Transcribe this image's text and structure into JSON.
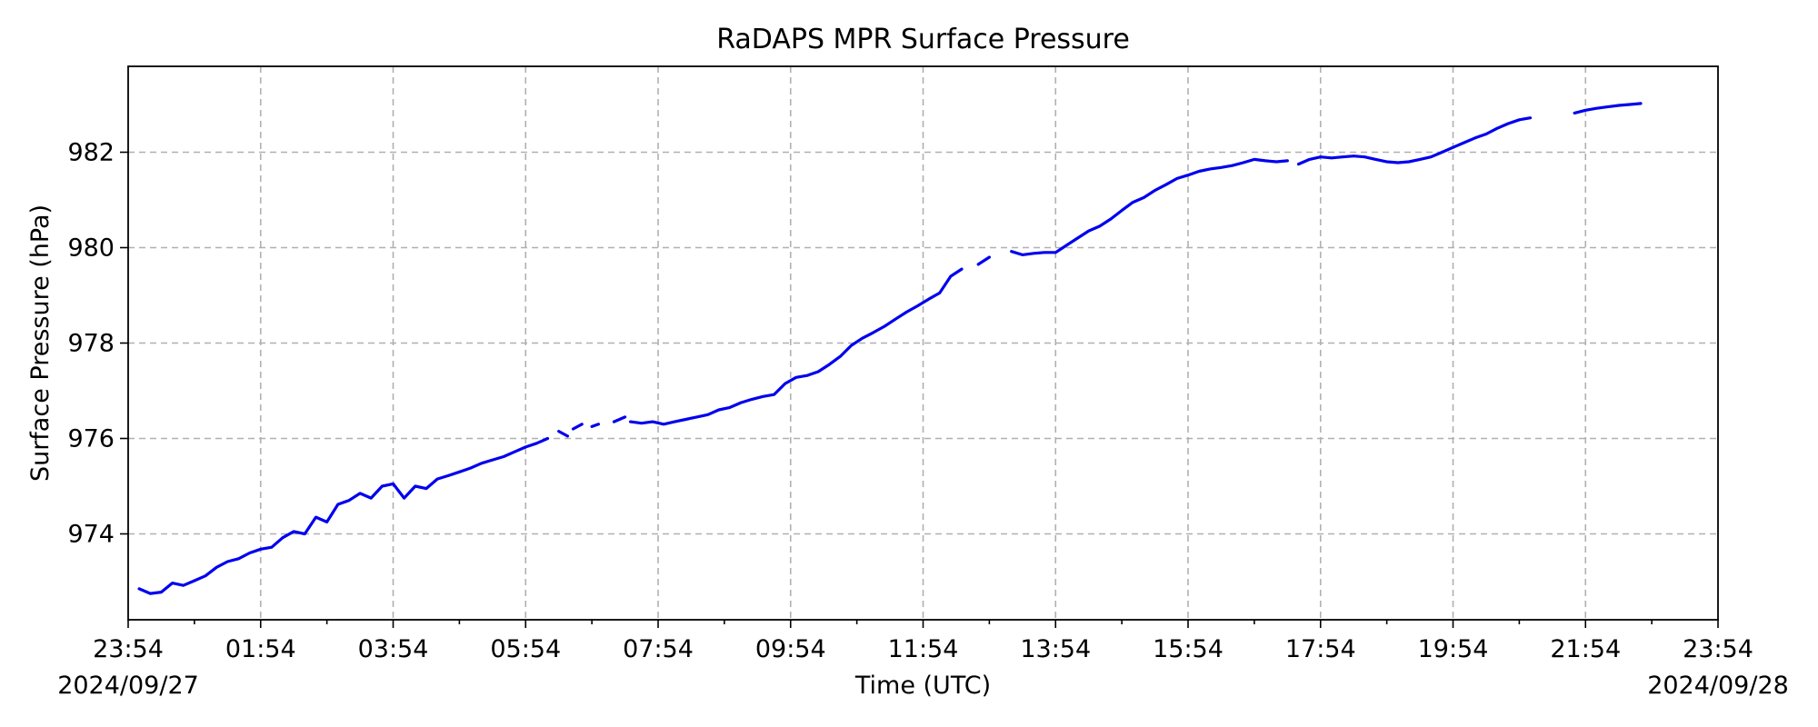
{
  "chart_data": {
    "type": "line",
    "title": "RaDAPS MPR Surface Pressure",
    "xlabel": "Time (UTC)",
    "ylabel": "Surface Pressure (hPa)",
    "date_start": "2024/09/27",
    "date_end": "2024/09/28",
    "x_ticks": [
      "23:54",
      "01:54",
      "03:54",
      "05:54",
      "07:54",
      "09:54",
      "11:54",
      "13:54",
      "15:54",
      "17:54",
      "19:54",
      "21:54",
      "23:54"
    ],
    "y_ticks": [
      "974",
      "976",
      "978",
      "980",
      "982"
    ],
    "xlim": [
      "2024-09-27 23:54",
      "2024-09-28 23:54"
    ],
    "ylim": [
      972.2,
      983.8
    ],
    "grid": true,
    "series": [
      {
        "color": "#0000ee",
        "segments": [
          [
            [
              "2024-09-28 00:04",
              972.85
            ],
            [
              "2024-09-28 00:14",
              972.75
            ],
            [
              "2024-09-28 00:24",
              972.78
            ],
            [
              "2024-09-28 00:34",
              972.97
            ],
            [
              "2024-09-28 00:44",
              972.92
            ],
            [
              "2024-09-28 00:54",
              973.02
            ],
            [
              "2024-09-28 01:04",
              973.12
            ],
            [
              "2024-09-28 01:14",
              973.3
            ],
            [
              "2024-09-28 01:24",
              973.42
            ],
            [
              "2024-09-28 01:34",
              973.48
            ],
            [
              "2024-09-28 01:44",
              973.6
            ],
            [
              "2024-09-28 01:54",
              973.68
            ],
            [
              "2024-09-28 02:04",
              973.72
            ],
            [
              "2024-09-28 02:14",
              973.92
            ],
            [
              "2024-09-28 02:24",
              974.05
            ],
            [
              "2024-09-28 02:34",
              974.0
            ],
            [
              "2024-09-28 02:44",
              974.35
            ],
            [
              "2024-09-28 02:54",
              974.25
            ],
            [
              "2024-09-28 03:04",
              974.62
            ],
            [
              "2024-09-28 03:14",
              974.7
            ],
            [
              "2024-09-28 03:24",
              974.85
            ],
            [
              "2024-09-28 03:34",
              974.75
            ],
            [
              "2024-09-28 03:44",
              975.0
            ],
            [
              "2024-09-28 03:54",
              975.05
            ],
            [
              "2024-09-28 04:04",
              974.75
            ],
            [
              "2024-09-28 04:14",
              975.0
            ],
            [
              "2024-09-28 04:24",
              974.95
            ],
            [
              "2024-09-28 04:34",
              975.15
            ],
            [
              "2024-09-28 04:44",
              975.22
            ],
            [
              "2024-09-28 04:54",
              975.3
            ],
            [
              "2024-09-28 05:04",
              975.38
            ],
            [
              "2024-09-28 05:14",
              975.48
            ],
            [
              "2024-09-28 05:24",
              975.55
            ],
            [
              "2024-09-28 05:34",
              975.62
            ],
            [
              "2024-09-28 05:44",
              975.72
            ],
            [
              "2024-09-28 05:54",
              975.82
            ],
            [
              "2024-09-28 06:04",
              975.9
            ],
            [
              "2024-09-28 06:14",
              976.0
            ]
          ],
          [
            [
              "2024-09-28 06:24",
              976.15
            ],
            [
              "2024-09-28 06:32",
              976.05
            ]
          ],
          [
            [
              "2024-09-28 06:37",
              976.2
            ],
            [
              "2024-09-28 06:45",
              976.3
            ]
          ],
          [
            [
              "2024-09-28 06:54",
              976.25
            ],
            [
              "2024-09-28 07:00",
              976.3
            ]
          ],
          [
            [
              "2024-09-28 07:14",
              976.35
            ],
            [
              "2024-09-28 07:24",
              976.45
            ]
          ],
          [
            [
              "2024-09-28 07:29",
              976.35
            ],
            [
              "2024-09-28 07:39",
              976.32
            ],
            [
              "2024-09-28 07:49",
              976.35
            ],
            [
              "2024-09-28 07:59",
              976.3
            ],
            [
              "2024-09-28 08:09",
              976.35
            ],
            [
              "2024-09-28 08:19",
              976.4
            ],
            [
              "2024-09-28 08:29",
              976.45
            ],
            [
              "2024-09-28 08:39",
              976.5
            ],
            [
              "2024-09-28 08:49",
              976.6
            ],
            [
              "2024-09-28 08:59",
              976.65
            ],
            [
              "2024-09-28 09:09",
              976.75
            ],
            [
              "2024-09-28 09:19",
              976.82
            ],
            [
              "2024-09-28 09:29",
              976.88
            ],
            [
              "2024-09-28 09:39",
              976.92
            ],
            [
              "2024-09-28 09:49",
              977.15
            ],
            [
              "2024-09-28 09:59",
              977.28
            ],
            [
              "2024-09-28 10:09",
              977.32
            ],
            [
              "2024-09-28 10:19",
              977.4
            ],
            [
              "2024-09-28 10:29",
              977.55
            ],
            [
              "2024-09-28 10:39",
              977.72
            ],
            [
              "2024-09-28 10:49",
              977.95
            ],
            [
              "2024-09-28 10:59",
              978.1
            ],
            [
              "2024-09-28 11:09",
              978.22
            ],
            [
              "2024-09-28 11:19",
              978.35
            ],
            [
              "2024-09-28 11:29",
              978.5
            ],
            [
              "2024-09-28 11:39",
              978.65
            ],
            [
              "2024-09-28 11:49",
              978.78
            ],
            [
              "2024-09-28 11:59",
              978.92
            ],
            [
              "2024-09-28 12:09",
              979.05
            ],
            [
              "2024-09-28 12:19",
              979.4
            ],
            [
              "2024-09-28 12:29",
              979.55
            ]
          ],
          [
            [
              "2024-09-28 12:44",
              979.65
            ],
            [
              "2024-09-28 12:54",
              979.8
            ]
          ],
          [
            [
              "2024-09-28 13:14",
              979.92
            ],
            [
              "2024-09-28 13:24",
              979.85
            ],
            [
              "2024-09-28 13:34",
              979.88
            ],
            [
              "2024-09-28 13:44",
              979.9
            ],
            [
              "2024-09-28 13:54",
              979.9
            ],
            [
              "2024-09-28 14:04",
              980.05
            ],
            [
              "2024-09-28 14:14",
              980.2
            ],
            [
              "2024-09-28 14:24",
              980.35
            ],
            [
              "2024-09-28 14:34",
              980.45
            ],
            [
              "2024-09-28 14:44",
              980.6
            ],
            [
              "2024-09-28 14:54",
              980.78
            ],
            [
              "2024-09-28 15:04",
              980.95
            ],
            [
              "2024-09-28 15:14",
              981.05
            ],
            [
              "2024-09-28 15:24",
              981.2
            ],
            [
              "2024-09-28 15:34",
              981.32
            ],
            [
              "2024-09-28 15:44",
              981.45
            ],
            [
              "2024-09-28 15:54",
              981.52
            ],
            [
              "2024-09-28 16:04",
              981.6
            ],
            [
              "2024-09-28 16:14",
              981.65
            ],
            [
              "2024-09-28 16:24",
              981.68
            ],
            [
              "2024-09-28 16:34",
              981.72
            ],
            [
              "2024-09-28 16:44",
              981.78
            ],
            [
              "2024-09-28 16:54",
              981.85
            ],
            [
              "2024-09-28 17:04",
              981.82
            ],
            [
              "2024-09-28 17:14",
              981.8
            ],
            [
              "2024-09-28 17:24",
              981.82
            ]
          ],
          [
            [
              "2024-09-28 17:34",
              981.75
            ],
            [
              "2024-09-28 17:44",
              981.85
            ],
            [
              "2024-09-28 17:54",
              981.9
            ],
            [
              "2024-09-28 18:04",
              981.88
            ],
            [
              "2024-09-28 18:14",
              981.9
            ],
            [
              "2024-09-28 18:24",
              981.92
            ],
            [
              "2024-09-28 18:34",
              981.9
            ],
            [
              "2024-09-28 18:44",
              981.85
            ],
            [
              "2024-09-28 18:54",
              981.8
            ],
            [
              "2024-09-28 19:04",
              981.78
            ],
            [
              "2024-09-28 19:14",
              981.8
            ],
            [
              "2024-09-28 19:24",
              981.85
            ],
            [
              "2024-09-28 19:34",
              981.9
            ],
            [
              "2024-09-28 19:44",
              982.0
            ],
            [
              "2024-09-28 19:54",
              982.1
            ],
            [
              "2024-09-28 20:04",
              982.2
            ],
            [
              "2024-09-28 20:14",
              982.3
            ],
            [
              "2024-09-28 20:24",
              982.38
            ],
            [
              "2024-09-28 20:34",
              982.5
            ],
            [
              "2024-09-28 20:44",
              982.6
            ],
            [
              "2024-09-28 20:54",
              982.68
            ],
            [
              "2024-09-28 21:04",
              982.72
            ]
          ],
          [
            [
              "2024-09-28 21:44",
              982.82
            ],
            [
              "2024-09-28 21:54",
              982.88
            ],
            [
              "2024-09-28 22:04",
              982.92
            ],
            [
              "2024-09-28 22:14",
              982.95
            ],
            [
              "2024-09-28 22:24",
              982.98
            ],
            [
              "2024-09-28 22:34",
              983.0
            ],
            [
              "2024-09-28 22:44",
              983.02
            ]
          ]
        ]
      }
    ]
  }
}
